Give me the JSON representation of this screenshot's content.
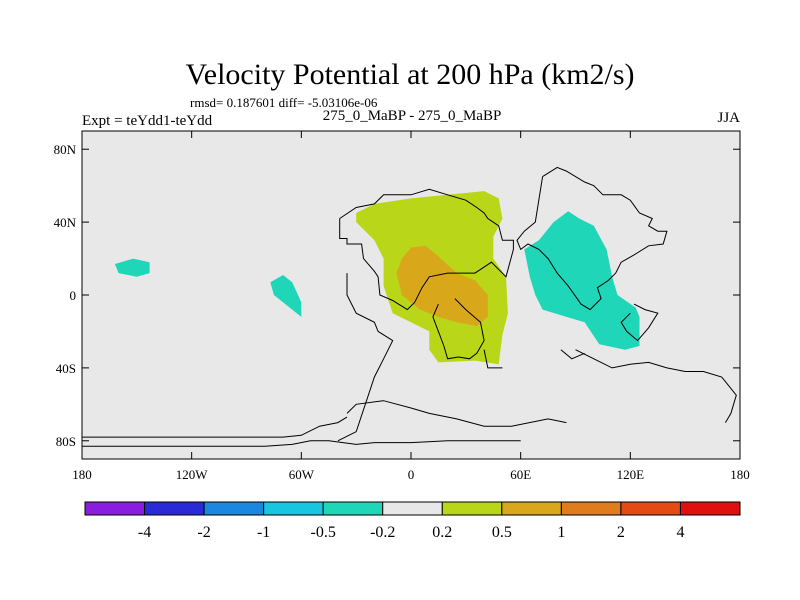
{
  "chart_data": {
    "type": "contour-map",
    "title": "Velocity Potential at 200 hPa (km2/s)",
    "stats_text": "rmsd= 0.187601 diff= -5.03106e-06",
    "left_label": "Expt = teYdd1-teYdd",
    "center_label": "275_0_MaBP - 275_0_MaBP",
    "right_label": "JJA",
    "xlim": [
      -180,
      180
    ],
    "ylim": [
      -90,
      90
    ],
    "x_ticks": [
      {
        "value": -180,
        "label": "180"
      },
      {
        "value": -120,
        "label": "120W"
      },
      {
        "value": -60,
        "label": "60W"
      },
      {
        "value": 0,
        "label": "0"
      },
      {
        "value": 60,
        "label": "60E"
      },
      {
        "value": 120,
        "label": "120E"
      },
      {
        "value": 180,
        "label": "180"
      }
    ],
    "y_ticks": [
      {
        "value": 80,
        "label": "80N"
      },
      {
        "value": 40,
        "label": "40N"
      },
      {
        "value": 0,
        "label": "0"
      },
      {
        "value": -40,
        "label": "40S"
      },
      {
        "value": -80,
        "label": "80S"
      }
    ],
    "background_color": "#e8e8e8",
    "colorbar": {
      "colors": [
        "#8a1ee0",
        "#2a2ad8",
        "#1a88e0",
        "#19c6e0",
        "#1fd6b8",
        "#e8e8e8",
        "#b9d619",
        "#d9a81a",
        "#e07c1c",
        "#e34a14",
        "#e01010"
      ],
      "levels": [
        -4,
        -2,
        -1,
        -0.5,
        -0.2,
        0.2,
        0.5,
        1,
        2,
        4
      ],
      "labels": [
        "-4",
        "-2",
        "-1",
        "-0.5",
        "-0.2",
        "0.2",
        "0.5",
        "1",
        "2",
        "4"
      ]
    },
    "regions": [
      {
        "name": "region-positive-africa",
        "category": 0.5,
        "color": "#b9d619",
        "points": [
          [
            -30,
            45
          ],
          [
            -20,
            50
          ],
          [
            0,
            53
          ],
          [
            20,
            55
          ],
          [
            40,
            57
          ],
          [
            48,
            53
          ],
          [
            50,
            42
          ],
          [
            45,
            32
          ],
          [
            45,
            20
          ],
          [
            52,
            10
          ],
          [
            53,
            -10
          ],
          [
            50,
            -22
          ],
          [
            48,
            -38
          ],
          [
            35,
            -36
          ],
          [
            15,
            -37
          ],
          [
            10,
            -30
          ],
          [
            10,
            -20
          ],
          [
            0,
            -15
          ],
          [
            -10,
            -10
          ],
          [
            -15,
            5
          ],
          [
            -15,
            20
          ],
          [
            -20,
            30
          ],
          [
            -30,
            40
          ]
        ]
      },
      {
        "name": "region-positive-core",
        "category": 1,
        "color": "#d9a81a",
        "points": [
          [
            -5,
            20
          ],
          [
            0,
            26
          ],
          [
            8,
            27
          ],
          [
            14,
            22
          ],
          [
            25,
            12
          ],
          [
            35,
            8
          ],
          [
            42,
            0
          ],
          [
            42,
            -12
          ],
          [
            36,
            -17
          ],
          [
            25,
            -15
          ],
          [
            15,
            -12
          ],
          [
            5,
            -8
          ],
          [
            -5,
            0
          ],
          [
            -8,
            12
          ]
        ]
      },
      {
        "name": "region-negative-asia",
        "category": -0.2,
        "color": "#1fd6b8",
        "points": [
          [
            62,
            25
          ],
          [
            70,
            30
          ],
          [
            78,
            40
          ],
          [
            86,
            46
          ],
          [
            92,
            42
          ],
          [
            100,
            38
          ],
          [
            107,
            25
          ],
          [
            110,
            10
          ],
          [
            113,
            0
          ],
          [
            123,
            -7
          ],
          [
            125,
            -12
          ],
          [
            125,
            -28
          ],
          [
            117,
            -30
          ],
          [
            103,
            -27
          ],
          [
            95,
            -15
          ],
          [
            85,
            -12
          ],
          [
            72,
            -8
          ],
          [
            68,
            0
          ],
          [
            65,
            10
          ]
        ]
      },
      {
        "name": "region-negative-pacific",
        "category": -0.2,
        "color": "#1fd6b8",
        "points": [
          [
            -162,
            17
          ],
          [
            -152,
            20
          ],
          [
            -143,
            18
          ],
          [
            -143,
            12
          ],
          [
            -150,
            10
          ],
          [
            -160,
            12
          ]
        ]
      },
      {
        "name": "region-negative-atlantic",
        "category": -0.2,
        "color": "#1fd6b8",
        "points": [
          [
            -77,
            7
          ],
          [
            -70,
            11
          ],
          [
            -65,
            7
          ],
          [
            -60,
            -4
          ],
          [
            -60,
            -12
          ],
          [
            -65,
            -8
          ],
          [
            -75,
            0
          ]
        ]
      }
    ],
    "coastlines": [
      [
        [
          -39,
          42
        ],
        [
          -39,
          31
        ],
        [
          -35,
          31
        ],
        [
          -35,
          28
        ],
        [
          -27,
          28
        ],
        [
          -26,
          20
        ],
        [
          -20,
          13
        ],
        [
          -18,
          10
        ],
        [
          -17,
          0
        ],
        [
          -10,
          -3
        ],
        [
          -2,
          -8
        ],
        [
          2,
          -4
        ],
        [
          6,
          4
        ],
        [
          10,
          10
        ],
        [
          20,
          12
        ],
        [
          35,
          12
        ],
        [
          44,
          18
        ],
        [
          52,
          10
        ],
        [
          56,
          25
        ],
        [
          56,
          30
        ],
        [
          50,
          30
        ],
        [
          48,
          38
        ],
        [
          42,
          42
        ],
        [
          40,
          45
        ],
        [
          36,
          48
        ],
        [
          30,
          52
        ],
        [
          20,
          55
        ],
        [
          10,
          58
        ],
        [
          0,
          55
        ],
        [
          -5,
          55
        ],
        [
          -15,
          55
        ],
        [
          -20,
          50
        ],
        [
          -30,
          48
        ],
        [
          -39,
          42
        ]
      ],
      [
        [
          -35,
          12
        ],
        [
          -35,
          0
        ],
        [
          -30,
          -10
        ],
        [
          -20,
          -15
        ],
        [
          -18,
          -20
        ],
        [
          -10,
          -25
        ],
        [
          -15,
          -35
        ],
        [
          -20,
          -45
        ],
        [
          -25,
          -60
        ],
        [
          -30,
          -75
        ],
        [
          -40,
          -80
        ]
      ],
      [
        [
          24,
          -2
        ],
        [
          30,
          -8
        ],
        [
          38,
          -15
        ],
        [
          40,
          -25
        ],
        [
          36,
          -32
        ],
        [
          32,
          -35
        ],
        [
          26,
          -34
        ],
        [
          20,
          -35
        ],
        [
          18,
          -28
        ],
        [
          15,
          -20
        ],
        [
          12,
          -12
        ],
        [
          15,
          -5
        ]
      ],
      [
        [
          40,
          -30
        ],
        [
          42,
          -40
        ],
        [
          50,
          -40
        ]
      ],
      [
        [
          72,
          65
        ],
        [
          80,
          70
        ],
        [
          85,
          68
        ],
        [
          95,
          62
        ],
        [
          100,
          60
        ],
        [
          105,
          55
        ],
        [
          115,
          55
        ],
        [
          120,
          52
        ],
        [
          125,
          45
        ],
        [
          132,
          42
        ],
        [
          130,
          38
        ],
        [
          135,
          35
        ],
        [
          140,
          35
        ],
        [
          138,
          28
        ],
        [
          130,
          27
        ],
        [
          122,
          22
        ],
        [
          115,
          18
        ],
        [
          112,
          12
        ],
        [
          108,
          8
        ],
        [
          102,
          4
        ],
        [
          104,
          -2
        ],
        [
          98,
          -8
        ],
        [
          93,
          -5
        ],
        [
          86,
          5
        ],
        [
          80,
          12
        ],
        [
          75,
          20
        ],
        [
          70,
          25
        ],
        [
          64,
          28
        ],
        [
          60,
          25
        ],
        [
          58,
          30
        ],
        [
          62,
          35
        ],
        [
          68,
          40
        ],
        [
          72,
          65
        ]
      ],
      [
        [
          122,
          -5
        ],
        [
          128,
          -8
        ],
        [
          135,
          -10
        ],
        [
          130,
          -18
        ],
        [
          124,
          -25
        ],
        [
          118,
          -20
        ],
        [
          115,
          -15
        ],
        [
          120,
          -10
        ]
      ],
      [
        [
          90,
          -30
        ],
        [
          100,
          -35
        ],
        [
          110,
          -40
        ],
        [
          120,
          -38
        ],
        [
          130,
          -37
        ],
        [
          140,
          -40
        ],
        [
          150,
          -42
        ],
        [
          160,
          -42
        ],
        [
          170,
          -45
        ],
        [
          178,
          -55
        ],
        [
          175,
          -65
        ],
        [
          172,
          -70
        ]
      ],
      [
        [
          82,
          -30
        ],
        [
          88,
          -35
        ],
        [
          95,
          -32
        ]
      ],
      [
        [
          -35,
          -65
        ],
        [
          -30,
          -60
        ],
        [
          -15,
          -58
        ],
        [
          0,
          -62
        ],
        [
          10,
          -65
        ],
        [
          25,
          -68
        ],
        [
          40,
          -72
        ],
        [
          55,
          -72
        ],
        [
          75,
          -68
        ],
        [
          85,
          -70
        ]
      ],
      [
        [
          -180,
          -78
        ],
        [
          -140,
          -78
        ],
        [
          -100,
          -78
        ],
        [
          -70,
          -78
        ],
        [
          -60,
          -77
        ],
        [
          -50,
          -72
        ],
        [
          -40,
          -70
        ],
        [
          -35,
          -67
        ]
      ],
      [
        [
          -180,
          -83
        ],
        [
          -120,
          -83
        ],
        [
          -80,
          -83
        ],
        [
          -65,
          -82
        ],
        [
          -55,
          -80
        ],
        [
          -45,
          -80
        ],
        [
          -30,
          -82
        ],
        [
          -20,
          -81
        ],
        [
          0,
          -81
        ],
        [
          20,
          -80
        ],
        [
          40,
          -80
        ],
        [
          60,
          -80
        ]
      ]
    ]
  }
}
